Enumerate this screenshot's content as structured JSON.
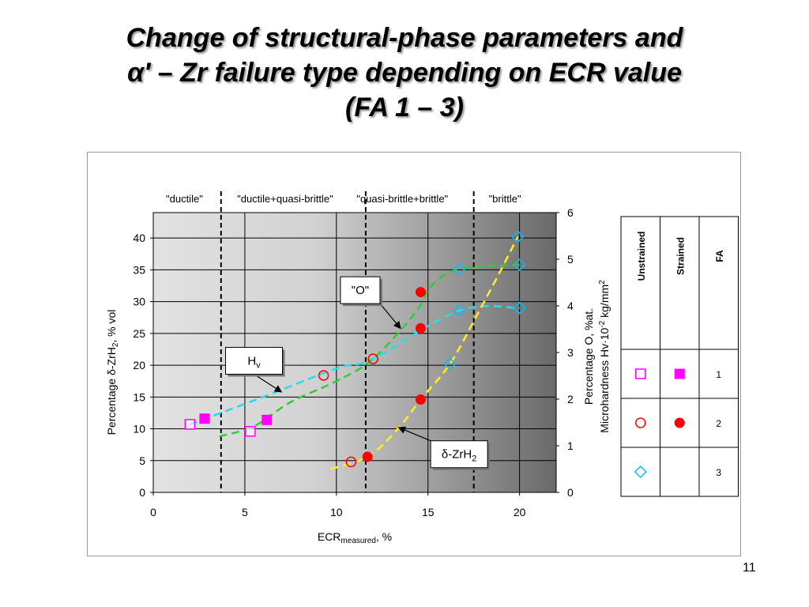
{
  "slide": {
    "title_lines": [
      "Change of structural-phase parameters and",
      "α′ – Zr failure type depending on ECR value",
      "(FA 1 – 3)"
    ],
    "page_number": "11"
  },
  "chart_data": {
    "type": "scatter",
    "xlabel": "ECR",
    "xlabel_sub": "measured",
    "xlabel_suffix": ", %",
    "ylabel_left": "Percentage δ-ZrH",
    "ylabel_left_sub": "2",
    "ylabel_left_suffix": ", % vol",
    "ylabel_right_line1": "Percentage O, %at.",
    "ylabel_right_line2_a": "Microhardness Hv·10",
    "ylabel_right_line2_sup": "-2",
    "ylabel_right_line2_b": " kg/mm",
    "ylabel_right_line2_sup2": "2",
    "xlim": [
      0,
      22
    ],
    "ylim_left": [
      0,
      44
    ],
    "ylim_right": [
      0,
      6
    ],
    "x_ticks": [
      0,
      5,
      10,
      15,
      20
    ],
    "y_left_ticks": [
      0,
      5,
      10,
      15,
      20,
      25,
      30,
      35,
      40
    ],
    "y_right_ticks": [
      0,
      1,
      2,
      3,
      4,
      5,
      6
    ],
    "grid": true,
    "background_gradient": [
      "#e2e2e2",
      "#6a6a6a"
    ],
    "zone_boundaries": [
      3.7,
      11.6,
      17.5
    ],
    "zones": [
      {
        "label": "\"ductile\"",
        "center": 1.7
      },
      {
        "label": "\"ductile+quasi-brittle\"",
        "center": 7.2
      },
      {
        "label": "\"quasi-brittle+brittle\"",
        "center": 13.6
      },
      {
        "label": "\"brittle\"",
        "center": 19.2
      }
    ],
    "series": [
      {
        "fa": "1",
        "state": "unstrained",
        "marker": "square-open",
        "color": "#ff00ff",
        "points": [
          [
            2.0,
            10.7
          ],
          [
            5.3,
            9.6
          ]
        ]
      },
      {
        "fa": "1",
        "state": "strained",
        "marker": "square-filled",
        "color": "#ff00ff",
        "points": [
          [
            2.8,
            11.6
          ],
          [
            6.2,
            11.4
          ]
        ]
      },
      {
        "fa": "2",
        "state": "unstrained",
        "marker": "circle-open",
        "color": "#ff0000",
        "points": [
          [
            10.8,
            4.8
          ],
          [
            9.3,
            18.4
          ],
          [
            12.0,
            21.0
          ]
        ]
      },
      {
        "fa": "2",
        "state": "strained",
        "marker": "circle-filled",
        "color": "#ff0000",
        "points": [
          [
            11.7,
            5.6
          ],
          [
            14.6,
            14.6
          ],
          [
            14.6,
            25.8
          ],
          [
            14.6,
            31.5
          ]
        ]
      },
      {
        "fa": "3",
        "state": "unstrained",
        "marker": "diamond-open",
        "color": "#00bfff",
        "points": [
          [
            16.2,
            20.2
          ],
          [
            16.7,
            35.1
          ],
          [
            16.7,
            28.6
          ],
          [
            19.9,
            40.2
          ],
          [
            20.0,
            35.8
          ],
          [
            20.0,
            29.0
          ]
        ]
      }
    ],
    "trend_lines": [
      {
        "name": "Hv",
        "color": "#22ddee",
        "points": [
          [
            2.0,
            10.7
          ],
          [
            6.0,
            15.0
          ],
          [
            10.0,
            19.5
          ],
          [
            12.0,
            21.0
          ],
          [
            16.7,
            28.6
          ],
          [
            20.0,
            29.0
          ]
        ]
      },
      {
        "name": "\"O\"",
        "color": "#33cc33",
        "points": [
          [
            3.6,
            8.8
          ],
          [
            5.5,
            10.4
          ],
          [
            7.5,
            14.2
          ],
          [
            10.0,
            17.5
          ],
          [
            12.0,
            21.0
          ],
          [
            14.3,
            28.2
          ],
          [
            15.2,
            32.5
          ],
          [
            16.7,
            35.1
          ],
          [
            20.0,
            35.8
          ]
        ]
      },
      {
        "name": "δ-ZrH2",
        "color": "#ffee22",
        "points": [
          [
            9.7,
            3.7
          ],
          [
            11.7,
            5.6
          ],
          [
            13.3,
            9.8
          ],
          [
            14.6,
            14.6
          ],
          [
            16.2,
            20.2
          ],
          [
            17.6,
            27.5
          ],
          [
            18.9,
            34.5
          ],
          [
            19.9,
            40.2
          ]
        ]
      }
    ],
    "annotations": [
      {
        "text": "\"O\"",
        "text_x": 11.3,
        "text_y": 31.8,
        "arrow_to": [
          13.5,
          25.8
        ]
      },
      {
        "text": "H",
        "sub": "v",
        "text_x": 5.5,
        "text_y": 20.7,
        "arrow_to": [
          7.0,
          15.8
        ]
      },
      {
        "text": "δ-ZrH",
        "sub": "2",
        "text_x": 16.7,
        "text_y": 6.0,
        "arrow_to": [
          13.4,
          10.2
        ]
      }
    ]
  },
  "legend": {
    "headers": [
      "Unstrained",
      "Strained",
      "FA"
    ],
    "rows": [
      {
        "fa": "1",
        "unstrained": "square-open",
        "strained": "square-filled",
        "color": "#ff00ff"
      },
      {
        "fa": "2",
        "unstrained": "circle-open",
        "strained": "circle-filled",
        "color": "#ff0000"
      },
      {
        "fa": "3",
        "unstrained": "diamond-open",
        "strained": "",
        "color": "#00bfff"
      }
    ]
  }
}
